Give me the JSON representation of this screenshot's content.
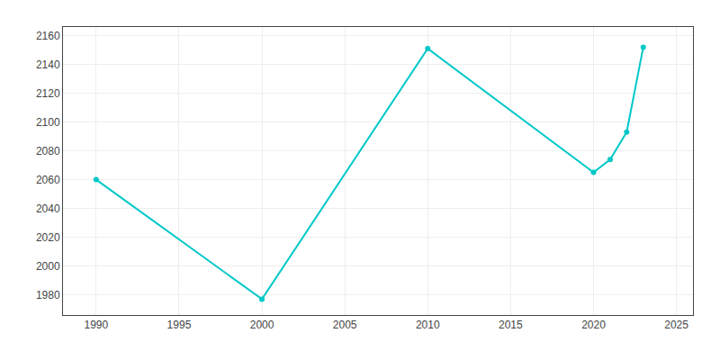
{
  "chart_data": {
    "type": "line",
    "x": [
      1990,
      2000,
      2010,
      2020,
      2021,
      2022,
      2023
    ],
    "values": [
      2060,
      1977,
      2151,
      2065,
      2074,
      2093,
      2152
    ],
    "color": "#00C8C8",
    "marker": "circle",
    "xlim": [
      1988,
      2026
    ],
    "ylim": [
      1966,
      2166
    ],
    "xticks": [
      1990,
      1995,
      2000,
      2005,
      2010,
      2015,
      2020,
      2025
    ],
    "yticks": [
      1980,
      2000,
      2020,
      2040,
      2060,
      2080,
      2100,
      2120,
      2140,
      2160
    ],
    "grid": true
  }
}
